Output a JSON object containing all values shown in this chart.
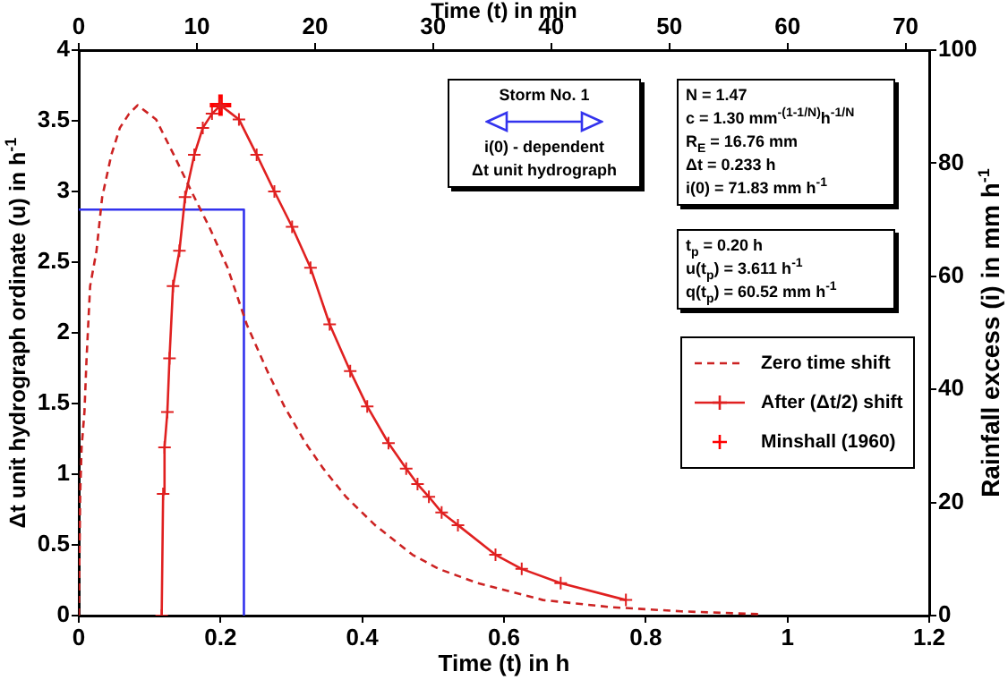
{
  "chart_data": {
    "type": "line",
    "xlabel": "Time (t) in h",
    "x2label": "Time (t) in min",
    "ylabel": "Δt unit hydrograph ordinate (u) in h$^{-1}$",
    "y2label": "Rainfall excess (i) in mm h$^{-1}$",
    "xlim": [
      0,
      1.2
    ],
    "xticks": [
      0,
      0.2,
      0.4,
      0.6,
      0.8,
      1,
      1.2
    ],
    "x2lim": [
      0,
      72
    ],
    "x2ticks": [
      0,
      10,
      20,
      30,
      40,
      50,
      60,
      70
    ],
    "ylim": [
      0,
      4
    ],
    "yticks": [
      0,
      0.5,
      1,
      1.5,
      2,
      2.5,
      3,
      3.5,
      4
    ],
    "y2lim": [
      0,
      100
    ],
    "y2ticks": [
      0,
      20,
      40,
      60,
      80,
      100
    ],
    "grid": false,
    "legend": "right",
    "annotations": [
      "Storm No. 1\ni(0) - dependent\nΔt unit hydrograph",
      "N = 1.47\nc = 1.30 mm$^{-(1-1/N)}$h$^{-1/N}$\nR$_{E}$ = 16.76 mm\nΔt = 0.233 h\ni(0) = 71.83 mm h$^{-1}$",
      "t$_{p}$ = 0.20 h\nu(t$_{p}$) = 3.611 h$^{-1}$\nq(t$_{p}$) = 60.52 mm h$^{-1}$"
    ],
    "series": [
      {
        "name": "Zero time shift",
        "type": "line",
        "color": "#cc2222",
        "line_style": "dashed",
        "marker": "none",
        "x": [
          0,
          0.002,
          0.004,
          0.008,
          0.011,
          0.016,
          0.025,
          0.033,
          0.046,
          0.058,
          0.071,
          0.083,
          0.109,
          0.134,
          0.159,
          0.184,
          0.21,
          0.237,
          0.266,
          0.29,
          0.32,
          0.345,
          0.377,
          0.418,
          0.471,
          0.508,
          0.563,
          0.655,
          0.75,
          0.85,
          0.96
        ],
        "values": [
          0,
          0.86,
          1.19,
          1.44,
          1.82,
          2.33,
          2.58,
          2.96,
          3.26,
          3.45,
          3.55,
          3.61,
          3.51,
          3.26,
          3,
          2.75,
          2.46,
          2.06,
          1.73,
          1.48,
          1.22,
          1.04,
          0.84,
          0.64,
          0.43,
          0.33,
          0.23,
          0.11,
          0.06,
          0.03,
          0.01
        ]
      },
      {
        "name": "After (Δt/2) shift",
        "type": "line",
        "color": "#e02020",
        "line_style": "solid",
        "marker": "cross",
        "x": [
          0.117,
          0.119,
          0.121,
          0.125,
          0.128,
          0.133,
          0.142,
          0.15,
          0.163,
          0.175,
          0.188,
          0.2,
          0.226,
          0.251,
          0.276,
          0.301,
          0.327,
          0.354,
          0.383,
          0.407,
          0.437,
          0.462,
          0.478,
          0.494,
          0.512,
          0.535,
          0.588,
          0.625,
          0.68,
          0.772
        ],
        "values": [
          0,
          0.86,
          1.19,
          1.44,
          1.82,
          2.33,
          2.58,
          2.96,
          3.26,
          3.45,
          3.55,
          3.61,
          3.51,
          3.26,
          3,
          2.75,
          2.46,
          2.06,
          1.73,
          1.48,
          1.22,
          1.04,
          0.93,
          0.84,
          0.73,
          0.64,
          0.43,
          0.33,
          0.23,
          0.11
        ]
      },
      {
        "name": "Minshall (1960)",
        "type": "scatter",
        "color": "#ff0000",
        "marker": "cross",
        "x": [
          0.2
        ],
        "values": [
          3.61
        ]
      },
      {
        "type": "line",
        "axis": "y2",
        "color": "#3333ee",
        "line_style": "solid",
        "marker": "none",
        "x": [
          0,
          0.233,
          0.233
        ],
        "values": [
          71.8,
          71.8,
          0
        ]
      }
    ]
  }
}
